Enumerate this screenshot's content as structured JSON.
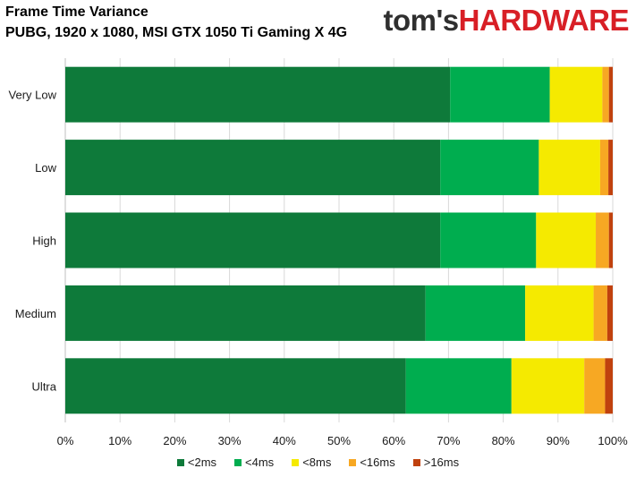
{
  "header": {
    "title": "Frame Time Variance",
    "subtitle": "PUBG, 1920 x 1080, MSI GTX 1050 Ti Gaming X 4G",
    "brand_part1": "tom's",
    "brand_part2": "HARDWARE"
  },
  "chart_data": {
    "type": "bar",
    "orientation": "horizontal",
    "stacked": true,
    "title": "Frame Time Variance",
    "subtitle": "PUBG, 1920 x 1080, MSI GTX 1050 Ti Gaming X 4G",
    "xlabel": "",
    "ylabel": "",
    "xlim": [
      0,
      100
    ],
    "x_ticks": [
      "0%",
      "10%",
      "20%",
      "30%",
      "40%",
      "50%",
      "60%",
      "70%",
      "80%",
      "90%",
      "100%"
    ],
    "grid": "vertical",
    "legend_position": "bottom",
    "categories": [
      "Very Low",
      "Low",
      "High",
      "Medium",
      "Ultra"
    ],
    "series": [
      {
        "name": "<2ms",
        "color": "#0e7a3a",
        "values": [
          70.3,
          68.5,
          68.5,
          65.8,
          62.2
        ]
      },
      {
        "name": "<4ms",
        "color": "#00ad4f",
        "values": [
          18.2,
          18.0,
          17.5,
          18.2,
          19.3
        ]
      },
      {
        "name": "<8ms",
        "color": "#f5ea00",
        "values": [
          9.6,
          11.2,
          10.9,
          12.5,
          13.3
        ]
      },
      {
        "name": "<16ms",
        "color": "#f7a823",
        "values": [
          1.2,
          1.5,
          2.4,
          2.5,
          3.8
        ]
      },
      {
        "name": ">16ms",
        "color": "#c0410e",
        "values": [
          0.7,
          0.8,
          0.7,
          1.0,
          1.4
        ]
      }
    ]
  }
}
